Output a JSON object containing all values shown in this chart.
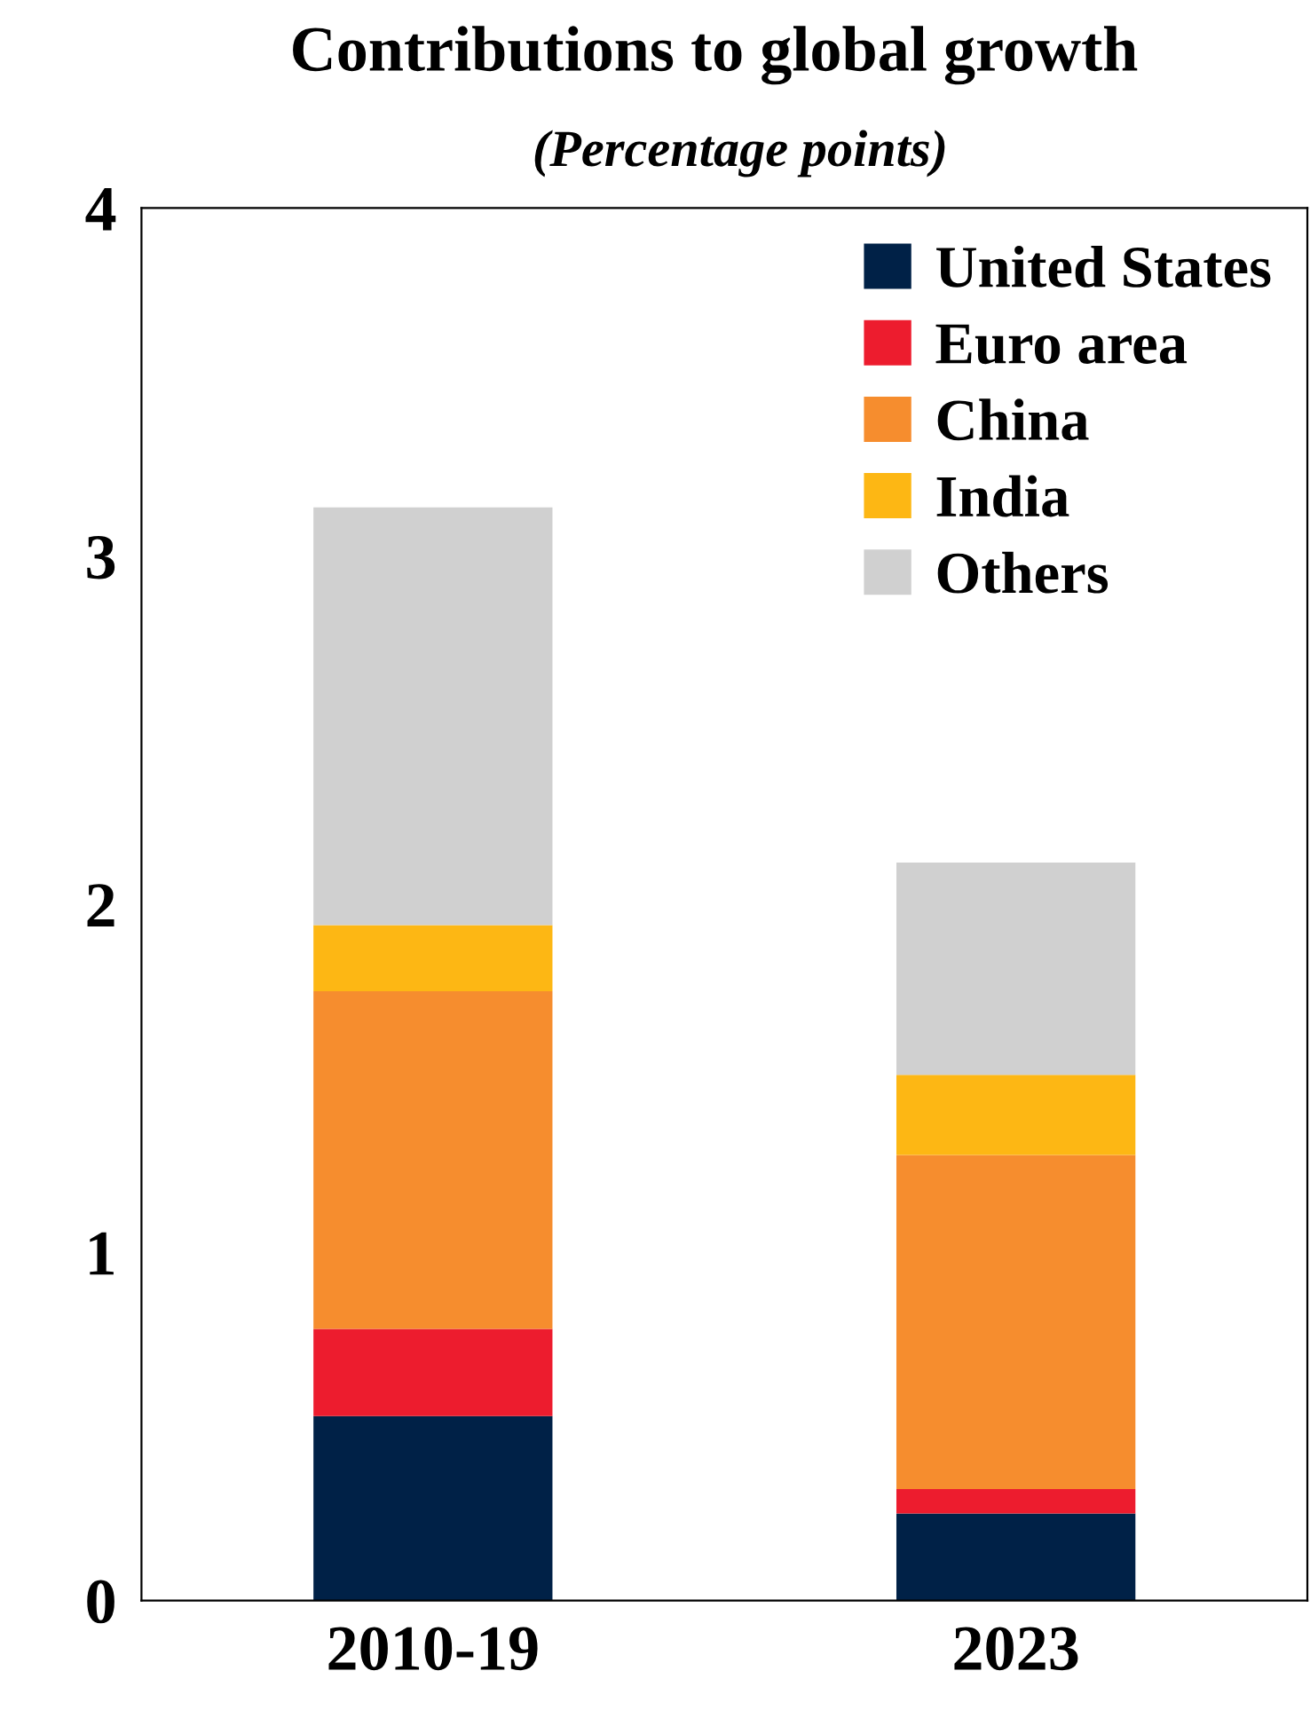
{
  "chart_data": {
    "type": "bar",
    "title": "Contributions to global growth",
    "subtitle": "(Percentage points)",
    "categories": [
      "2010-19",
      "2023"
    ],
    "stacked": true,
    "legend": "top right",
    "grid": false,
    "ylim": [
      0,
      4
    ],
    "yticks": [
      0,
      1,
      2,
      3,
      4
    ],
    "series": [
      {
        "name": "United States",
        "color": "#002147",
        "values": [
          0.53,
          0.25
        ]
      },
      {
        "name": "Euro area",
        "color": "#ed1c2e",
        "values": [
          0.25,
          0.07
        ]
      },
      {
        "name": "China",
        "color": "#f68d2e",
        "values": [
          0.97,
          0.96
        ]
      },
      {
        "name": "India",
        "color": "#fdb714",
        "values": [
          0.19,
          0.23
        ]
      },
      {
        "name": "Others",
        "color": "#d0d0d0",
        "values": [
          1.2,
          0.61
        ]
      }
    ]
  }
}
